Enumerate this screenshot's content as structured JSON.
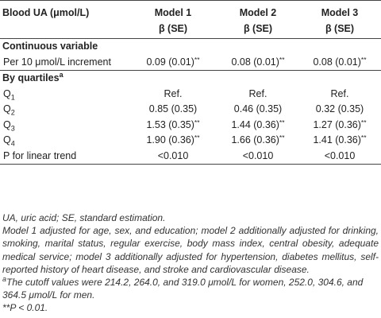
{
  "header": {
    "col0": "Blood UA (μmol/L)",
    "models": [
      "Model 1",
      "Model 2",
      "Model 3"
    ],
    "subheads": [
      "β (SE)",
      "β (SE)",
      "β (SE)"
    ]
  },
  "sections": {
    "continuous": "Continuous variable",
    "quartiles": "By quartiles",
    "quartiles_sup": "a"
  },
  "rows": {
    "increment": {
      "label": "Per 10 μmol/L increment",
      "values": [
        "0.09 (0.01)",
        "0.08 (0.01)",
        "0.08 (0.01)"
      ],
      "sig": [
        "**",
        "**",
        "**"
      ]
    },
    "q1": {
      "label_main": "Q",
      "label_sub": "1",
      "values": [
        "Ref.",
        "Ref.",
        "Ref."
      ]
    },
    "q2": {
      "label_main": "Q",
      "label_sub": "2",
      "values": [
        "0.85 (0.35)",
        "0.46 (0.35)",
        "0.32 (0.35)"
      ]
    },
    "q3": {
      "label_main": "Q",
      "label_sub": "3",
      "values": [
        "1.53 (0.35)",
        "1.44 (0.36)",
        "1.27 (0.36)"
      ],
      "sig": [
        "**",
        "**",
        "**"
      ]
    },
    "q4": {
      "label_main": "Q",
      "label_sub": "4",
      "values": [
        "1.90 (0.36)",
        "1.66 (0.36)",
        "1.41 (0.36)"
      ],
      "sig": [
        "**",
        "**",
        "**"
      ]
    },
    "trend": {
      "label": "P for linear trend",
      "values": [
        "<0.010",
        "<0.010",
        "<0.010"
      ]
    }
  },
  "notes": {
    "abbrev": "UA, uric acid; SE, standard estimation.",
    "models": "Model 1 adjusted for age, sex, and education; model 2 additionally adjusted for drinking, smoking, marital status, regular exercise, body mass index, central obesity, adequate medical service; model 3 additionally adjusted for hypertension, diabetes mellitus, self-reported history of heart disease, and stroke and cardiovascular disease.",
    "cutoff_marker": "a",
    "cutoff": "The cutoff values were 214.2, 264.0, and 319.0 μmol/L for women, 252.0, 304.6, and 364.5 μmol/L for men.",
    "significance": "**P < 0.01."
  }
}
